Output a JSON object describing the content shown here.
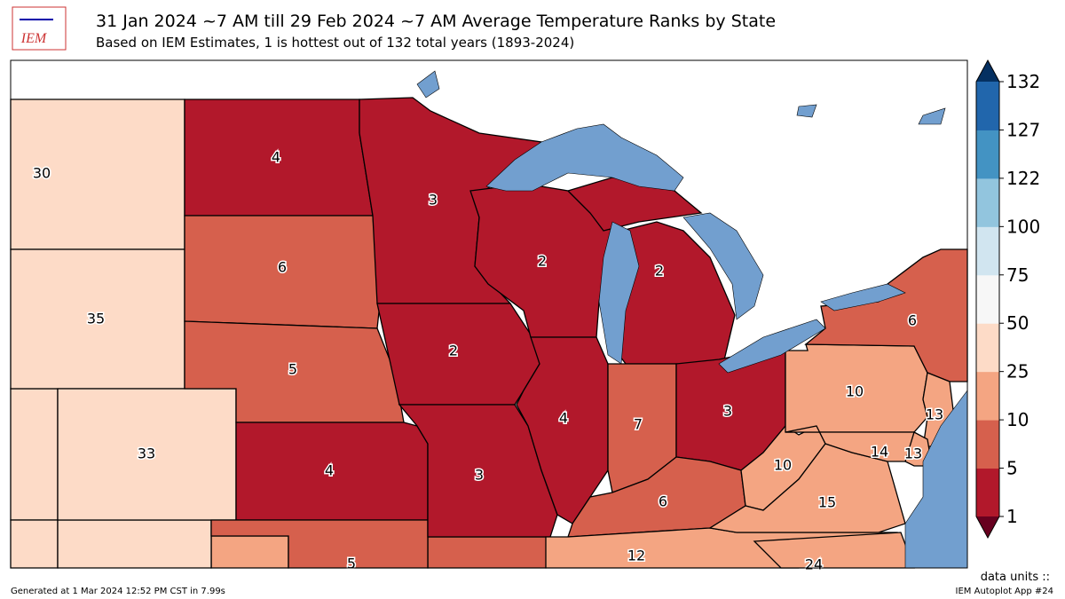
{
  "header": {
    "logo": "IEM",
    "title": "31 Jan 2024 ~7 AM till 29 Feb 2024 ~7 AM Average Temperature Ranks by State",
    "subtitle": "Based on IEM Estimates, 1 is hottest out of 132 total years (1893-2024)"
  },
  "map": {
    "values": [
      30,
      35,
      33,
      4,
      6,
      5,
      4,
      5,
      3,
      2,
      3,
      2,
      4,
      2,
      7,
      3,
      6,
      12,
      10,
      15,
      24,
      10,
      6,
      13,
      14,
      13
    ]
  },
  "colorbar": {
    "ticks": [
      1,
      5,
      10,
      25,
      50,
      75,
      100,
      122,
      127,
      132
    ],
    "colors": [
      "#b2182b",
      "#d6604d",
      "#f4a582",
      "#fddbc7",
      "#f7f7f7",
      "#d1e5f0",
      "#92c5de",
      "#4393c3",
      "#2166ac"
    ],
    "under": "#67001f",
    "over": "#053061"
  },
  "footer": {
    "generated": "Generated at 1 Mar 2024 12:52 PM CST in 7.99s",
    "app": "IEM Autoplot App #24",
    "units": "data units ::"
  }
}
